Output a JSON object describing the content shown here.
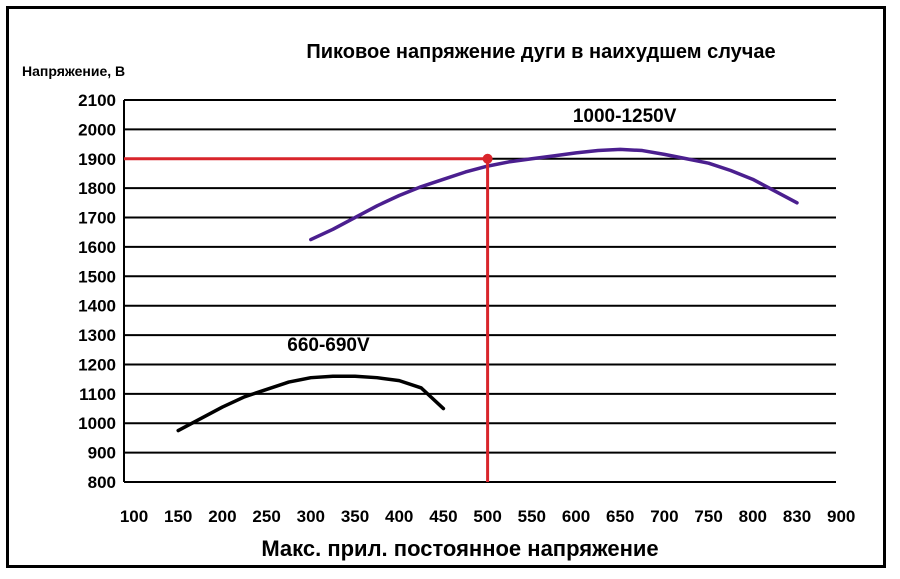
{
  "chart_data": {
    "type": "line",
    "title": "Пиковое напряжение дуги в наихудшем случае",
    "ylabel": "Напряжение, В",
    "xlabel": "Макс. прил. постоянное напряжение",
    "x_ticks": [
      100,
      150,
      200,
      250,
      300,
      350,
      400,
      450,
      500,
      550,
      600,
      650,
      700,
      750,
      800,
      830,
      900
    ],
    "y_ticks": [
      800,
      900,
      1000,
      1100,
      1200,
      1300,
      1400,
      1500,
      1600,
      1700,
      1800,
      1900,
      2000,
      2100
    ],
    "ylim": [
      800,
      2100
    ],
    "grid": "horizontal",
    "series": [
      {
        "name": "660-690V",
        "color": "#000000",
        "x_index": [
          1,
          1.5,
          2,
          2.5,
          3,
          3.5,
          4,
          4.5,
          5,
          5.5,
          6,
          6.5,
          7
        ],
        "y": [
          975,
          1015,
          1055,
          1090,
          1115,
          1140,
          1155,
          1160,
          1160,
          1155,
          1145,
          1120,
          1050
        ]
      },
      {
        "name": "1000-1250V",
        "color": "#4B1F8F",
        "x_index": [
          4,
          4.5,
          5,
          5.5,
          6,
          6.5,
          7,
          7.5,
          8,
          8.5,
          9,
          9.5,
          10,
          10.5,
          11,
          11.5,
          12,
          12.5,
          13,
          13.5,
          14,
          14.5,
          15
        ],
        "y": [
          1625,
          1660,
          1700,
          1740,
          1775,
          1805,
          1830,
          1855,
          1875,
          1890,
          1900,
          1910,
          1920,
          1928,
          1932,
          1928,
          1915,
          1900,
          1885,
          1860,
          1830,
          1790,
          1750
        ]
      }
    ],
    "marker": {
      "x_index": 8,
      "y": 1900,
      "color": "#D9252B"
    }
  }
}
